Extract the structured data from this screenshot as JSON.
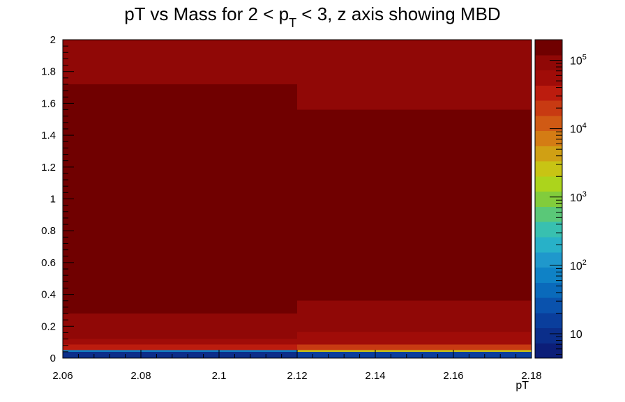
{
  "chart_data": {
    "type": "heatmap",
    "title": {
      "prefix": "pT vs Mass for 2 < p",
      "subscript": "T",
      "suffix": " < 3, z axis showing MBD"
    },
    "xlabel": "pT",
    "ylabel": "",
    "xlim": [
      2.06,
      2.18
    ],
    "ylim": [
      0,
      2
    ],
    "x_ticks": [
      "2.06",
      "2.08",
      "2.1",
      "2.12",
      "2.14",
      "2.16",
      "2.18"
    ],
    "y_ticks": [
      "0",
      "0.2",
      "0.4",
      "0.6",
      "0.8",
      "1",
      "1.2",
      "1.4",
      "1.6",
      "1.8",
      "2"
    ],
    "x_bins": [
      2.06,
      2.12,
      2.18
    ],
    "cells": [
      {
        "x0": 2.06,
        "x1": 2.12,
        "y0": 0.0,
        "y1": 0.04,
        "level": 1
      },
      {
        "x0": 2.06,
        "x1": 2.12,
        "y0": 0.04,
        "y1": 0.05,
        "level": 5
      },
      {
        "x0": 2.06,
        "x1": 2.12,
        "y0": 0.05,
        "y1": 0.085,
        "level": 17
      },
      {
        "x0": 2.06,
        "x1": 2.12,
        "y0": 0.085,
        "y1": 0.12,
        "level": 18
      },
      {
        "x0": 2.06,
        "x1": 2.12,
        "y0": 0.12,
        "y1": 0.28,
        "level": 19
      },
      {
        "x0": 2.06,
        "x1": 2.12,
        "y0": 0.28,
        "y1": 1.72,
        "level": 20
      },
      {
        "x0": 2.06,
        "x1": 2.12,
        "y0": 1.72,
        "y1": 2.0,
        "level": 19
      },
      {
        "x0": 2.12,
        "x1": 2.18,
        "y0": 0.0,
        "y1": 0.04,
        "level": 2
      },
      {
        "x0": 2.12,
        "x1": 2.18,
        "y0": 0.04,
        "y1": 0.05,
        "level": 12
      },
      {
        "x0": 2.12,
        "x1": 2.18,
        "y0": 0.05,
        "y1": 0.085,
        "level": 16
      },
      {
        "x0": 2.12,
        "x1": 2.18,
        "y0": 0.085,
        "y1": 0.165,
        "level": 18
      },
      {
        "x0": 2.12,
        "x1": 2.18,
        "y0": 0.165,
        "y1": 0.36,
        "level": 19
      },
      {
        "x0": 2.12,
        "x1": 2.18,
        "y0": 0.36,
        "y1": 1.56,
        "level": 20
      },
      {
        "x0": 2.12,
        "x1": 2.18,
        "y0": 1.56,
        "y1": 2.0,
        "level": 19
      }
    ],
    "z_axis": {
      "scale": "log",
      "range": [
        4.4,
        200000
      ],
      "labels": [
        {
          "value": 10,
          "base": "10",
          "exp": ""
        },
        {
          "value": 100,
          "base": "10",
          "exp": "2"
        },
        {
          "value": 1000,
          "base": "10",
          "exp": "3"
        },
        {
          "value": 10000,
          "base": "10",
          "exp": "4"
        },
        {
          "value": 100000,
          "base": "10",
          "exp": "5"
        }
      ]
    },
    "palette": [
      "#0c1e78",
      "#0b2e8a",
      "#0a3e9c",
      "#0a52ad",
      "#0a6abb",
      "#0f82c6",
      "#1f98cc",
      "#28b1c8",
      "#38c0b0",
      "#5ac878",
      "#82cc3c",
      "#acd41c",
      "#c8c414",
      "#d0a014",
      "#d47c14",
      "#d05a14",
      "#c83a12",
      "#bc1c0e",
      "#a00c08",
      "#900806",
      "#700000"
    ]
  }
}
